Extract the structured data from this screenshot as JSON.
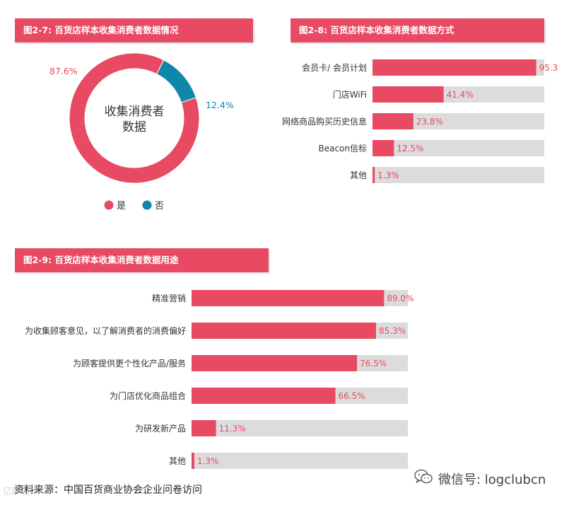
{
  "colors": {
    "accent": "#e84a63",
    "teal": "#0e87a8",
    "track": "#dcdcdc",
    "label": "#333333"
  },
  "panels": {
    "p27": {
      "title": "图2-7: 百货店样本收集消费者数据情况"
    },
    "p28": {
      "title": "图2-8: 百货店样本收集消费者数据方式"
    },
    "p29": {
      "title": "图2-9: 百货店样本收集消费者数据用途"
    }
  },
  "footer": {
    "source": "资料来源：中国百货商业协会企业问卷访问",
    "wechat": "微信号: logclubcn",
    "watermark": "亿欧智库"
  },
  "chart_data": [
    {
      "type": "pie",
      "title": "图2-7: 百货店样本收集消费者数据情况",
      "center_label": [
        "收集消费者",
        "数据"
      ],
      "categories": [
        "是",
        "否"
      ],
      "values": [
        87.6,
        12.4
      ],
      "value_labels": [
        "87.6%",
        "12.4%"
      ],
      "colors": [
        "#e84a63",
        "#0e87a8"
      ],
      "legend": "bottom"
    },
    {
      "type": "bar",
      "orientation": "horizontal",
      "title": "图2-8: 百货店样本收集消费者数据方式",
      "categories": [
        "会员卡/ 会员计划",
        "门店WiFi",
        "网络商品购买历史信息",
        "Beacon信标",
        "其他"
      ],
      "values": [
        95.3,
        41.4,
        23.8,
        12.5,
        1.3
      ],
      "value_labels": [
        "95.3",
        "41.4%",
        "23.8%",
        "12.5%",
        "1.3%"
      ],
      "xlim": [
        0,
        100
      ]
    },
    {
      "type": "bar",
      "orientation": "horizontal",
      "title": "图2-9: 百货店样本收集消费者数据用途",
      "categories": [
        "精准营销",
        "为收集顾客意见，以了解消费者的消费偏好",
        "为顾客提供更个性化产品/服务",
        "为门店优化商品组合",
        "为研发新产品",
        "其他"
      ],
      "values": [
        89.0,
        85.3,
        76.5,
        66.5,
        11.3,
        1.3
      ],
      "value_labels": [
        "89.0%",
        "85.3%",
        "76.5%",
        "66.5%",
        "11.3%",
        "1.3%"
      ],
      "xlim": [
        0,
        100
      ]
    }
  ]
}
